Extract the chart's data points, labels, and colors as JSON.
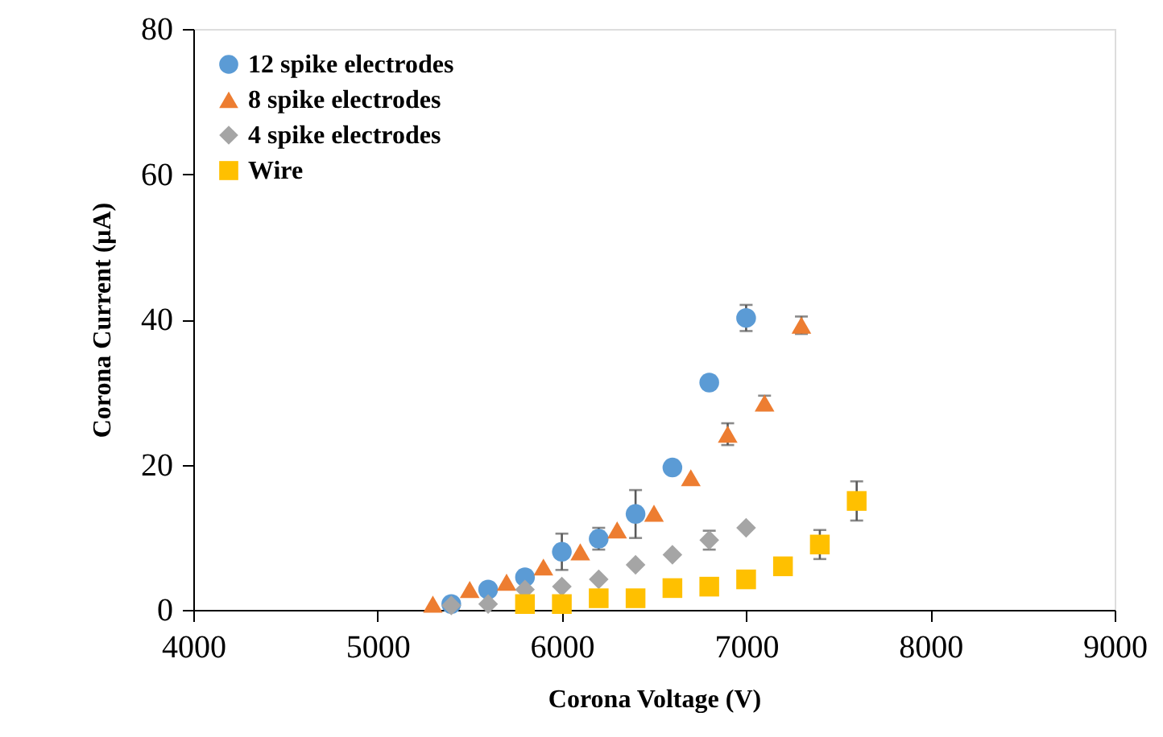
{
  "chart_data": {
    "type": "scatter",
    "xlabel": "Corona Voltage (V)",
    "ylabel": "Corona Current (μA)",
    "xlim": [
      4000,
      9000
    ],
    "xticks": [
      4000,
      5000,
      6000,
      7000,
      8000,
      9000
    ],
    "ylim": [
      0,
      80
    ],
    "yticks": [
      0,
      20,
      40,
      60,
      80
    ],
    "grid": false,
    "legend": "top left",
    "series": [
      {
        "name": "12 spike electrodes",
        "color": "#5b9bd5",
        "marker": "circle",
        "x": [
          5400,
          5600,
          5800,
          6000,
          6200,
          6400,
          6600,
          6800,
          7000
        ],
        "values": [
          0.8,
          2.8,
          4.5,
          8,
          9.8,
          13.2,
          19.6,
          31.3,
          40.2
        ],
        "errors": [
          null,
          null,
          null,
          2.5,
          1.5,
          3.3,
          null,
          null,
          1.8
        ]
      },
      {
        "name": "8 spike electrodes",
        "color": "#ed7d31",
        "marker": "triangle",
        "x": [
          5300,
          5500,
          5700,
          5900,
          6100,
          6300,
          6500,
          6700,
          6900,
          7100,
          7300
        ],
        "values": [
          0.8,
          2.8,
          3.8,
          5.9,
          8,
          11,
          13.3,
          18.2,
          24.2,
          28.5,
          39.2
        ],
        "errors": [
          null,
          null,
          null,
          null,
          null,
          null,
          null,
          null,
          1.5,
          1,
          1.2
        ]
      },
      {
        "name": "4 spike electrodes",
        "color": "#a5a5a5",
        "marker": "diamond",
        "x": [
          5400,
          5600,
          5800,
          6000,
          6200,
          6400,
          6600,
          6800,
          7000
        ],
        "values": [
          0.6,
          0.8,
          2.8,
          3.2,
          4.2,
          6.2,
          7.6,
          9.6,
          11.3
        ],
        "errors": [
          null,
          null,
          null,
          null,
          null,
          null,
          null,
          1.3,
          null
        ]
      },
      {
        "name": "Wire",
        "color": "#ffc000",
        "marker": "square",
        "x": [
          5800,
          6000,
          6200,
          6400,
          6600,
          6800,
          7000,
          7200,
          7400,
          7600
        ],
        "values": [
          0.8,
          0.8,
          1.6,
          1.6,
          3,
          3.2,
          4.2,
          6,
          9,
          15
        ],
        "errors": [
          null,
          null,
          null,
          null,
          null,
          null,
          null,
          null,
          2,
          2.7
        ]
      }
    ]
  }
}
